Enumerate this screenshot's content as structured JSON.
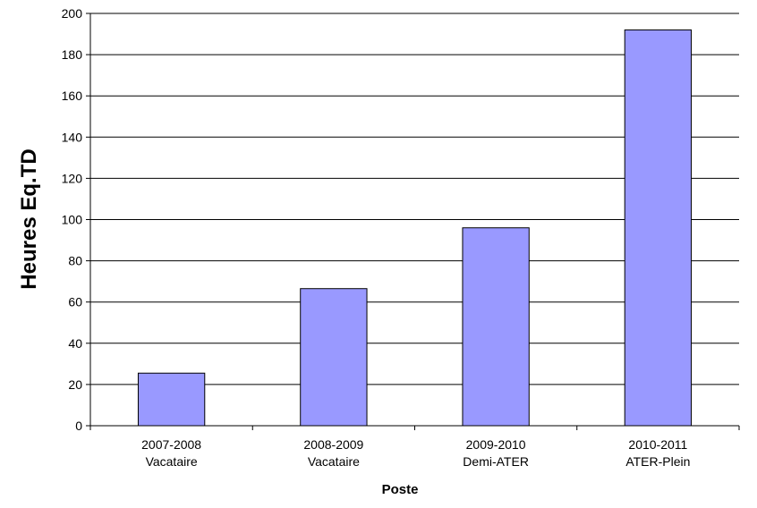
{
  "chart_data": {
    "type": "bar",
    "title": "",
    "xlabel": "Poste",
    "ylabel": "Heures Eq.TD",
    "ylim": [
      0,
      200
    ],
    "yticks": [
      0,
      20,
      40,
      60,
      80,
      100,
      120,
      140,
      160,
      180,
      200
    ],
    "grid": true,
    "legend": "none",
    "categories": [
      [
        "2007-2008",
        "Vacataire"
      ],
      [
        "2008-2009",
        "Vacataire"
      ],
      [
        "2009-2010",
        "Demi-ATER"
      ],
      [
        "2010-2011",
        "ATER-Plein"
      ]
    ],
    "values": [
      25.5,
      66.5,
      96,
      192
    ],
    "bar_color": "#9999ff",
    "bar_edge_color": "#000000"
  }
}
